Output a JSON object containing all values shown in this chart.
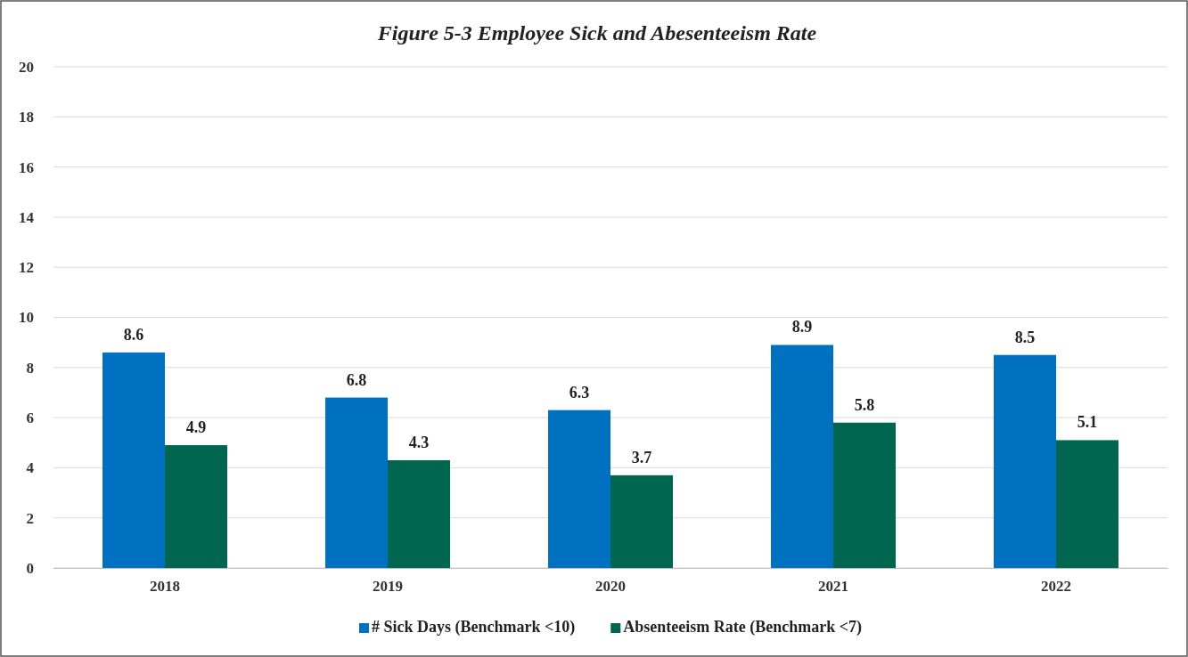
{
  "chart_data": {
    "type": "bar",
    "title": "Figure 5-3 Employee Sick and Abesenteeism Rate",
    "categories": [
      "2018",
      "2019",
      "2020",
      "2021",
      "2022"
    ],
    "series": [
      {
        "name": "# Sick Days (Benchmark <10)",
        "color": "#0070c0",
        "values": [
          8.6,
          6.8,
          6.3,
          8.9,
          8.5
        ]
      },
      {
        "name": "Absenteeism Rate (Benchmark <7)",
        "color": "#00664f",
        "values": [
          4.9,
          4.3,
          3.7,
          5.8,
          5.1
        ]
      }
    ],
    "ylim": [
      0,
      20
    ],
    "yticks": [
      0,
      2,
      4,
      6,
      8,
      10,
      12,
      14,
      16,
      18,
      20
    ],
    "grid": "y",
    "legend": "bottom",
    "data_labels": true
  }
}
